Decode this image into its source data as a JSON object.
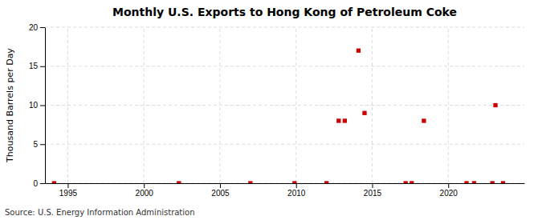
{
  "chart_data": {
    "type": "scatter",
    "title": "Monthly U.S. Exports to Hong Kong of Petroleum Coke",
    "y_label": "Thousand Barrels per Day",
    "source": "Source: U.S. Energy Information Administration",
    "x": [
      1994.1,
      2002.3,
      2007.0,
      2009.9,
      2012.0,
      2012.8,
      2013.2,
      2014.1,
      2014.5,
      2017.2,
      2017.6,
      2018.4,
      2021.2,
      2021.7,
      2022.9,
      2023.1,
      2023.6
    ],
    "values": [
      0.0,
      0.0,
      0.0,
      0.0,
      0.0,
      8.0,
      8.0,
      17.0,
      9.0,
      0.0,
      0.0,
      8.0,
      0.0,
      0.0,
      0.0,
      10.0,
      0.0
    ],
    "color": "#cc0000",
    "marker": "square",
    "xlim": [
      1993.5,
      2025
    ],
    "ylim": [
      0,
      20
    ],
    "xticks": [
      1995,
      2000,
      2005,
      2010,
      2015,
      2020
    ],
    "yticks": [
      0,
      5,
      10,
      15,
      20
    ],
    "grid": true
  }
}
